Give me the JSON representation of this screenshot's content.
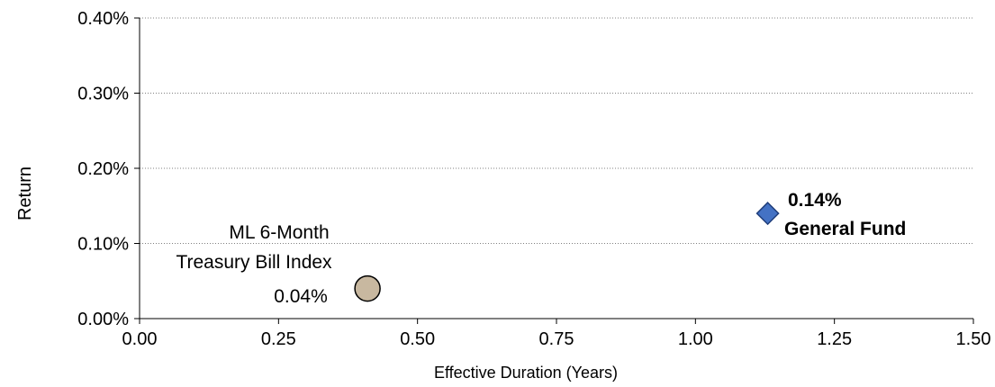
{
  "chart_data": {
    "type": "scatter",
    "title": "",
    "xlabel": "Effective Duration (Years)",
    "ylabel": "Return",
    "xlim": [
      0,
      1.5
    ],
    "ylim": [
      0,
      0.4
    ],
    "x_ticks": [
      "0.00",
      "0.25",
      "0.50",
      "0.75",
      "1.00",
      "1.25",
      "1.50"
    ],
    "y_ticks": [
      "0.00%",
      "0.10%",
      "0.20%",
      "0.30%",
      "0.40%"
    ],
    "grid": "horizontal-dotted",
    "points": [
      {
        "label_lines": [
          "ML 6-Month",
          "Treasury Bill Index"
        ],
        "value_label": "0.04%",
        "x": 0.41,
        "y": 0.04,
        "marker": "circle",
        "color": "#c8b8a0"
      },
      {
        "label_lines": [
          "General Fund"
        ],
        "value_label": "0.14%",
        "x": 1.13,
        "y": 0.14,
        "marker": "diamond",
        "color": "#4472c4"
      }
    ]
  }
}
